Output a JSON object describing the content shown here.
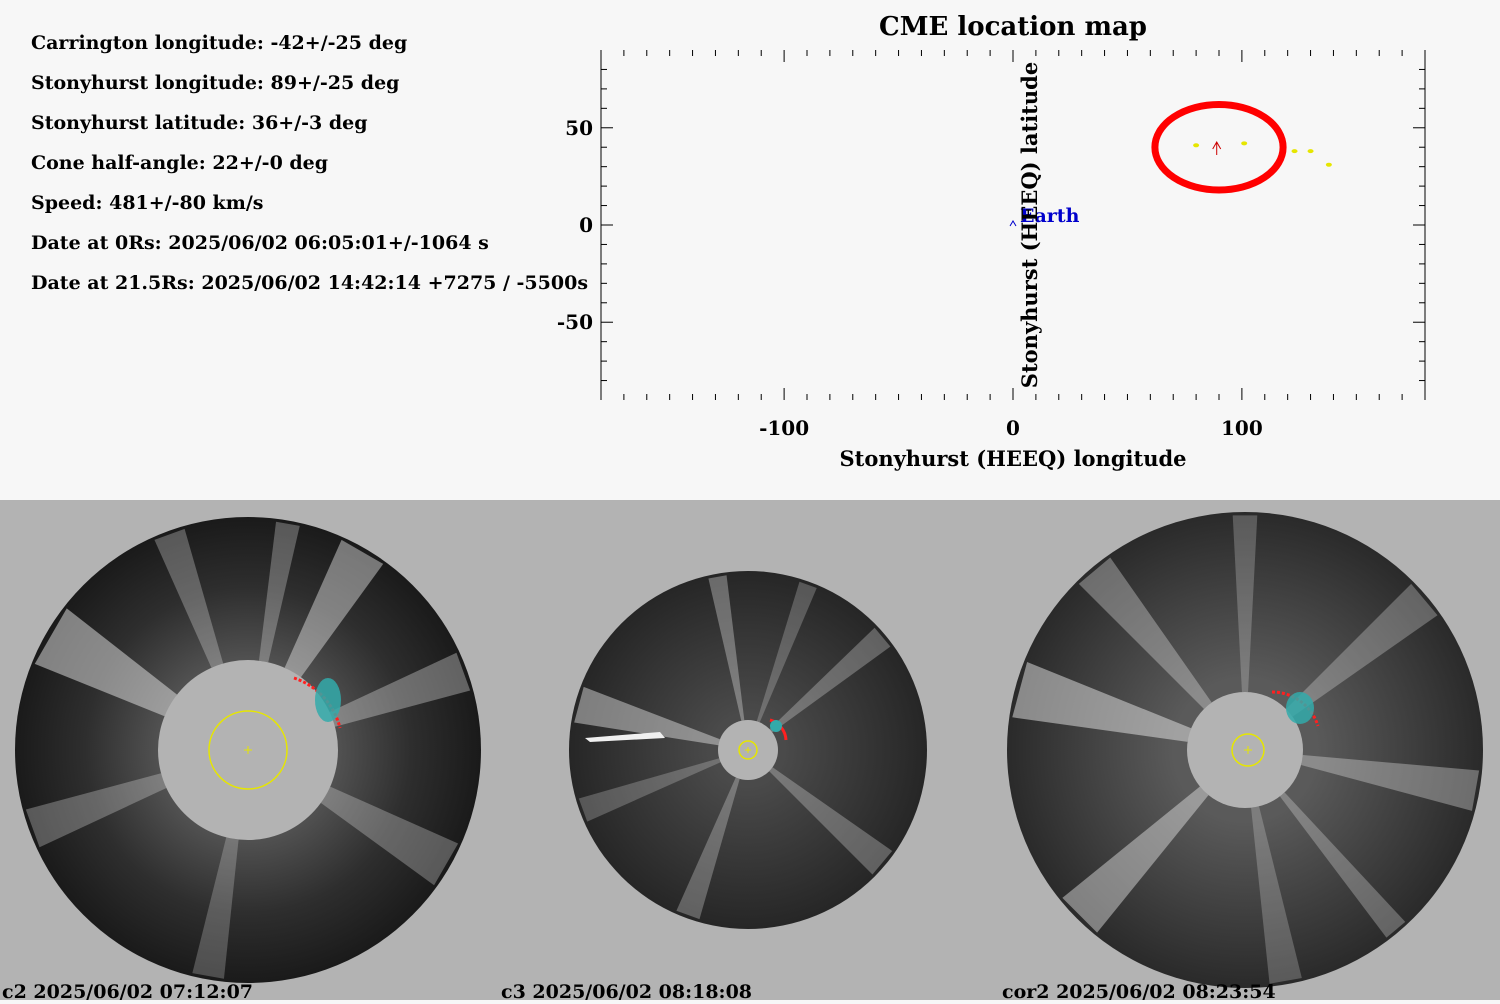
{
  "parameters": [
    "Carrington longitude: -42+/-25 deg",
    "Stonyhurst longitude: 89+/-25 deg",
    "Stonyhurst latitude: 36+/-3 deg",
    "Cone half-angle: 22+/-0 deg",
    "Speed: 481+/-80 km/s",
    "Date at 0Rs: 2025/06/02 06:05:01+/-1064 s",
    "Date at 21.5Rs: 2025/06/02 14:42:14 +7275 / -5500s"
  ],
  "chart_data": {
    "type": "scatter",
    "title": "CME location map",
    "xlabel": "Stonyhurst (HEEQ) longitude",
    "ylabel": "Stonyhurst (HEEQ) latitude",
    "xlim": [
      -180,
      180
    ],
    "ylim": [
      -90,
      90
    ],
    "xticks": [
      -100,
      0,
      100
    ],
    "yticks": [
      -50,
      0,
      50
    ],
    "grid": false,
    "earth": {
      "label": "Earth",
      "x": 0,
      "y": 0
    },
    "cme": {
      "x": 89,
      "y": 36
    },
    "cone_ellipse": {
      "cx": 90,
      "cy": 40,
      "rx": 28,
      "ry": 22
    },
    "points": [
      {
        "x": 80,
        "y": 41
      },
      {
        "x": 101,
        "y": 42
      },
      {
        "x": 123,
        "y": 38
      },
      {
        "x": 130,
        "y": 38
      },
      {
        "x": 138,
        "y": 31
      }
    ],
    "colors": {
      "earth": "#0000cc",
      "cone": "#ff0000",
      "points": "#e6e600",
      "cme": "#cc0000"
    }
  },
  "images": [
    {
      "label": "c2 2025/06/02 07:12:07"
    },
    {
      "label": "c3 2025/06/02 08:18:08"
    },
    {
      "label": "cor2 2025/06/02 08:23:54"
    }
  ]
}
